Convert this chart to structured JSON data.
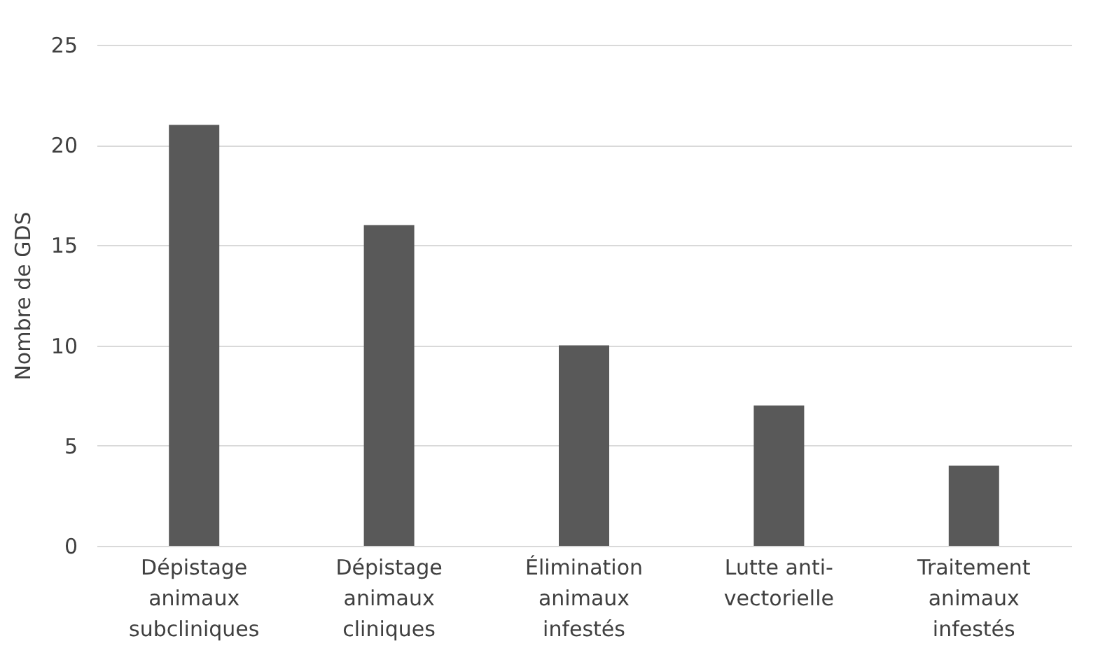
{
  "chart_data": {
    "type": "bar",
    "categories": [
      "Dépistage animaux subcliniques",
      "Dépistage animaux cliniques",
      "Élimination animaux infestés",
      "Lutte anti-vectorielle",
      "Traitement animaux infestés"
    ],
    "values": [
      21,
      16,
      10,
      7,
      4
    ],
    "color": "#595959",
    "ylabel": "Nombre de GDS",
    "ylim": [
      0,
      25
    ],
    "yticks": [
      0,
      5,
      10,
      15,
      20,
      25
    ],
    "grid": "y"
  }
}
